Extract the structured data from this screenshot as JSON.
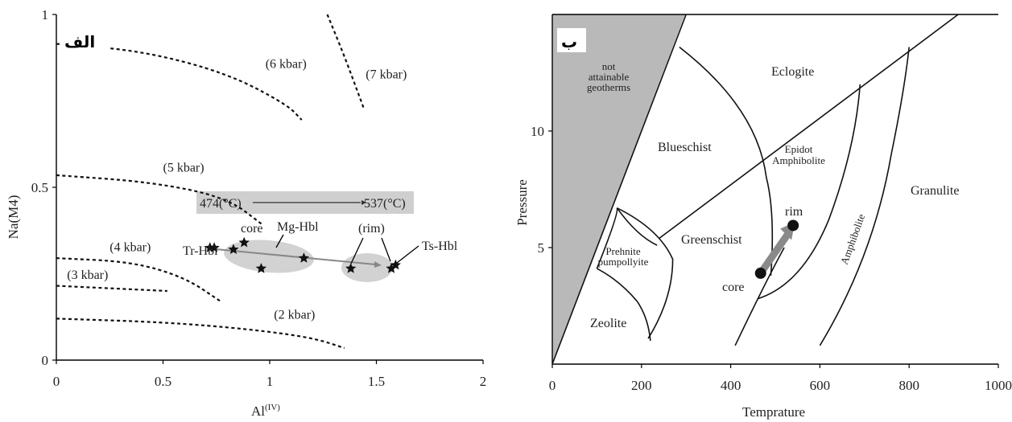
{
  "panels": {
    "left_tag": "الف",
    "right_tag": "ب"
  },
  "chart_data": [
    {
      "type": "scatter",
      "title": "",
      "xlabel": "Al",
      "xlabel_sup": "(IV)",
      "ylabel": "Na(M4)",
      "xlim": [
        0,
        2
      ],
      "ylim": [
        0,
        1
      ],
      "x_ticks": [
        "0",
        "0.5",
        "1",
        "1.5",
        "2"
      ],
      "y_ticks": [
        "0",
        "0.5",
        "1"
      ],
      "isobars": [
        {
          "label": "(2 kbar)",
          "points": [
            [
              0,
              0.12
            ],
            [
              0.5,
              0.11
            ],
            [
              0.9,
              0.09
            ],
            [
              1.2,
              0.065
            ],
            [
              1.35,
              0.035
            ]
          ]
        },
        {
          "label": "(3 kbar)",
          "points": [
            [
              0,
              0.215
            ],
            [
              0.52,
              0.2
            ]
          ]
        },
        {
          "label": "(4 kbar)",
          "points": [
            [
              0,
              0.295
            ],
            [
              0.35,
              0.285
            ],
            [
              0.6,
              0.24
            ],
            [
              0.77,
              0.17
            ]
          ]
        },
        {
          "label": "(5 kbar)",
          "points": [
            [
              0,
              0.535
            ],
            [
              0.45,
              0.515
            ],
            [
              0.8,
              0.47
            ],
            [
              0.97,
              0.39
            ]
          ]
        },
        {
          "label": "(6 kbar)",
          "points": [
            [
              0,
              0.915
            ],
            [
              0.4,
              0.895
            ],
            [
              0.8,
              0.83
            ],
            [
              1.08,
              0.74
            ],
            [
              1.15,
              0.695
            ]
          ]
        },
        {
          "label": "(7 kbar)",
          "points": [
            [
              1.27,
              1.0
            ],
            [
              1.35,
              0.88
            ],
            [
              1.44,
              0.73
            ]
          ]
        }
      ],
      "series": [
        {
          "values": [
            [
              0.72,
              0.325
            ],
            [
              0.74,
              0.325
            ],
            [
              0.83,
              0.32
            ],
            [
              0.88,
              0.34
            ],
            [
              0.96,
              0.265
            ],
            [
              1.16,
              0.295
            ],
            [
              1.38,
              0.265
            ],
            [
              1.57,
              0.265
            ],
            [
              1.59,
              0.275
            ]
          ]
        }
      ],
      "temperature_box": {
        "from": "474(°C)",
        "to": "537(°C)"
      },
      "annotations": {
        "tr_hbl": "Tr-Hbl",
        "core": "core",
        "mg_hbl": "Mg-Hbl",
        "rim": "(rim)",
        "ts_hbl": "Ts-Hbl"
      }
    },
    {
      "type": "diagram",
      "title": "",
      "xlabel": "Temprature",
      "ylabel": "Pressure",
      "xlim": [
        0,
        1000
      ],
      "ylim": [
        0,
        15
      ],
      "x_ticks": [
        "0",
        "200",
        "400",
        "600",
        "800",
        "1000"
      ],
      "y_ticks": [
        "5",
        "10"
      ],
      "facies": {
        "not_attainable": [
          "not",
          "attainable",
          "geotherms"
        ],
        "eclogite": "Eclogite",
        "blueschist": "Blueschist",
        "epidot_amph": [
          "Epidot",
          "Amphibolite"
        ],
        "amphibolite": "Amphibolite",
        "granulite": "Granulite",
        "prehnite": [
          "Prehnite",
          "pumpollyite"
        ],
        "greenschist": "Greenschist",
        "zeolite": "Zeolite"
      },
      "path": {
        "core_label": "core",
        "rim_label": "rim",
        "core": [
          467,
          3.9
        ],
        "rim": [
          540,
          5.95
        ]
      }
    }
  ]
}
